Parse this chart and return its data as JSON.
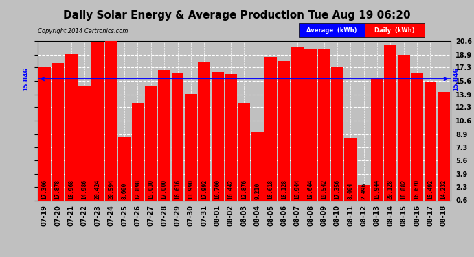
{
  "title": "Daily Solar Energy & Average Production Tue Aug 19 06:20",
  "copyright": "Copyright 2014 Cartronics.com",
  "average_value": 15.846,
  "bar_color": "#FF0000",
  "average_color": "#0000FF",
  "background_color": "#C0C0C0",
  "categories": [
    "07-19",
    "07-20",
    "07-21",
    "07-22",
    "07-23",
    "07-24",
    "07-25",
    "07-26",
    "07-27",
    "07-28",
    "07-29",
    "07-30",
    "07-31",
    "08-01",
    "08-02",
    "08-03",
    "08-04",
    "08-05",
    "08-06",
    "08-07",
    "08-08",
    "08-09",
    "08-10",
    "08-11",
    "08-12",
    "08-13",
    "08-14",
    "08-15",
    "08-16",
    "08-17",
    "08-18"
  ],
  "values": [
    17.306,
    17.878,
    18.968,
    14.986,
    20.424,
    20.594,
    8.6,
    12.898,
    15.03,
    17.0,
    16.616,
    13.99,
    17.992,
    16.7,
    16.442,
    12.876,
    9.21,
    18.618,
    18.128,
    19.944,
    19.644,
    19.542,
    17.356,
    8.404,
    2.496,
    15.944,
    20.128,
    18.882,
    16.67,
    15.492,
    14.232
  ],
  "ylim_min": 0.6,
  "ylim_max": 20.6,
  "yticks": [
    0.6,
    2.3,
    3.9,
    5.6,
    7.3,
    8.9,
    10.6,
    12.3,
    13.9,
    15.6,
    17.3,
    18.9,
    20.6
  ],
  "grid_color": "#FFFFFF",
  "title_fontsize": 11,
  "tick_fontsize": 7,
  "label_fontsize": 5.8
}
